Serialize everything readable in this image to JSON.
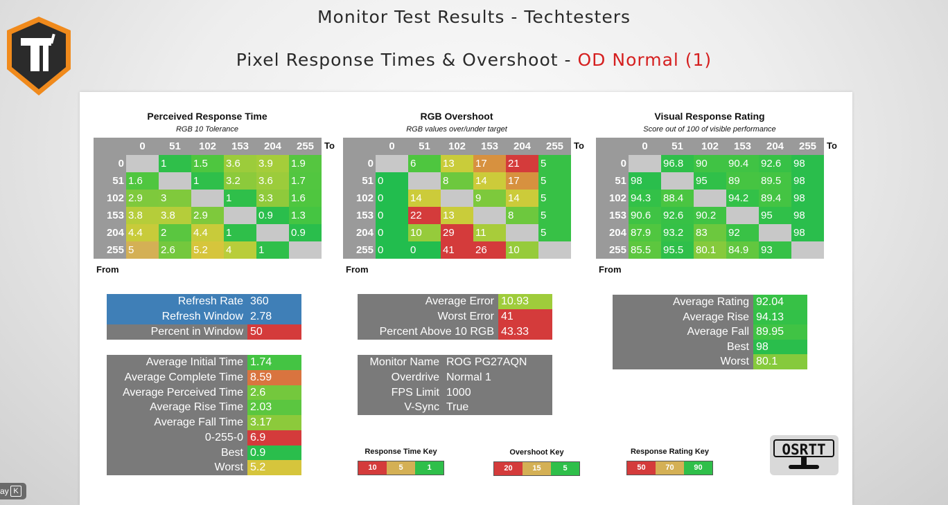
{
  "title": "Monitor Test Results - Techtesters",
  "subtitle_prefix": "Pixel Response Times & Overshoot - ",
  "subtitle_mode": "OD Normal (1)",
  "logo_letter": "T",
  "heatmaps": [
    {
      "title": "Perceived Response Time",
      "subtitle": "RGB 10 Tolerance",
      "to_label": "To",
      "from_label": "From",
      "cols": [
        "0",
        "51",
        "102",
        "153",
        "204",
        "255"
      ],
      "rows": [
        {
          "h": "0",
          "c": [
            [
              "",
              ""
            ],
            [
              "1",
              "#2fbf4a"
            ],
            [
              "1.5",
              "#4ec63f"
            ],
            [
              "3.6",
              "#9ccc3b"
            ],
            [
              "3.9",
              "#a5cd3a"
            ],
            [
              "1.9",
              "#55c640"
            ]
          ]
        },
        {
          "h": "51",
          "c": [
            [
              "1.6",
              "#4fc63f"
            ],
            [
              "",
              ""
            ],
            [
              "1",
              "#2fbf4a"
            ],
            [
              "3.2",
              "#8cca3b"
            ],
            [
              "3.6",
              "#9ccc3b"
            ],
            [
              "1.7",
              "#52c640"
            ]
          ]
        },
        {
          "h": "102",
          "c": [
            [
              "2.9",
              "#7ec93c"
            ],
            [
              "3",
              "#80c93c"
            ],
            [
              "",
              ""
            ],
            [
              "1",
              "#2fbf4a"
            ],
            [
              "3.3",
              "#8fca3b"
            ],
            [
              "1.6",
              "#4fc63f"
            ]
          ]
        },
        {
          "h": "153",
          "c": [
            [
              "3.8",
              "#b5cd3a"
            ],
            [
              "3.8",
              "#b5cd3a"
            ],
            [
              "2.9",
              "#7ec93c"
            ],
            [
              "",
              ""
            ],
            [
              "0.9",
              "#2abe4c"
            ],
            [
              "1.3",
              "#45c542"
            ]
          ]
        },
        {
          "h": "204",
          "c": [
            [
              "4.4",
              "#c8cb3a"
            ],
            [
              "2",
              "#5ac640"
            ],
            [
              "4.4",
              "#c8cb3a"
            ],
            [
              "1",
              "#2fbf4a"
            ],
            [
              "",
              ""
            ],
            [
              "0.9",
              "#2abe4c"
            ]
          ]
        },
        {
          "h": "255",
          "c": [
            [
              "5",
              "#d4b055"
            ],
            [
              "2.6",
              "#74c83d"
            ],
            [
              "5.2",
              "#d6c53c"
            ],
            [
              "4",
              "#b9cd3a"
            ],
            [
              "1",
              "#2fbf4a"
            ],
            [
              "",
              ""
            ]
          ]
        }
      ]
    },
    {
      "title": "RGB Overshoot",
      "subtitle": "RGB values over/under target",
      "to_label": "To",
      "from_label": "From",
      "cols": [
        "0",
        "51",
        "102",
        "153",
        "204",
        "255"
      ],
      "rows": [
        {
          "h": "0",
          "c": [
            [
              "",
              ""
            ],
            [
              "6",
              "#4ec63f"
            ],
            [
              "13",
              "#c9cc3a"
            ],
            [
              "17",
              "#d7913f"
            ],
            [
              "21",
              "#d43b3b"
            ],
            [
              "5",
              "#37c146"
            ]
          ]
        },
        {
          "h": "51",
          "c": [
            [
              "0",
              "#22bd4e"
            ],
            [
              "",
              ""
            ],
            [
              "8",
              "#6dc83e"
            ],
            [
              "14",
              "#cccb3a"
            ],
            [
              "17",
              "#d7913f"
            ],
            [
              "5",
              "#37c146"
            ]
          ]
        },
        {
          "h": "102",
          "c": [
            [
              "0",
              "#22bd4e"
            ],
            [
              "14",
              "#cccb3a"
            ],
            [
              "",
              ""
            ],
            [
              "9",
              "#7dc93c"
            ],
            [
              "14",
              "#cccb3a"
            ],
            [
              "5",
              "#37c146"
            ]
          ]
        },
        {
          "h": "153",
          "c": [
            [
              "0",
              "#22bd4e"
            ],
            [
              "22",
              "#d43b3b"
            ],
            [
              "13",
              "#c9cc3a"
            ],
            [
              "",
              ""
            ],
            [
              "8",
              "#6dc83e"
            ],
            [
              "5",
              "#37c146"
            ]
          ]
        },
        {
          "h": "204",
          "c": [
            [
              "0",
              "#22bd4e"
            ],
            [
              "10",
              "#96cb3b"
            ],
            [
              "29",
              "#d43b3b"
            ],
            [
              "11",
              "#a8cc3a"
            ],
            [
              "",
              ""
            ],
            [
              "5",
              "#37c146"
            ]
          ]
        },
        {
          "h": "255",
          "c": [
            [
              "0",
              "#22bd4e"
            ],
            [
              "0",
              "#22bd4e"
            ],
            [
              "41",
              "#d43b3b"
            ],
            [
              "26",
              "#d43b3b"
            ],
            [
              "10",
              "#96cb3b"
            ],
            [
              "",
              ""
            ]
          ]
        }
      ]
    },
    {
      "title": "Visual Response Rating",
      "subtitle": "Score out of 100 of visible performance",
      "to_label": "To",
      "from_label": "From",
      "cols": [
        "0",
        "51",
        "102",
        "153",
        "204",
        "255"
      ],
      "rows": [
        {
          "h": "0",
          "c": [
            [
              "",
              ""
            ],
            [
              "96.8",
              "#2fbf4a"
            ],
            [
              "90",
              "#40c344"
            ],
            [
              "90.4",
              "#40c344"
            ],
            [
              "92.6",
              "#37c146"
            ],
            [
              "98",
              "#2abe4c"
            ]
          ]
        },
        {
          "h": "51",
          "c": [
            [
              "98",
              "#2abe4c"
            ],
            [
              "",
              ""
            ],
            [
              "95",
              "#30c049"
            ],
            [
              "89",
              "#46c442"
            ],
            [
              "89.5",
              "#44c443"
            ],
            [
              "98",
              "#2abe4c"
            ]
          ]
        },
        {
          "h": "102",
          "c": [
            [
              "94.3",
              "#33c148"
            ],
            [
              "88.4",
              "#4ac541"
            ],
            [
              "",
              ""
            ],
            [
              "94.2",
              "#33c148"
            ],
            [
              "89.4",
              "#44c443"
            ],
            [
              "98",
              "#2abe4c"
            ]
          ]
        },
        {
          "h": "153",
          "c": [
            [
              "90.6",
              "#3fc344"
            ],
            [
              "92.6",
              "#37c146"
            ],
            [
              "90.2",
              "#40c344"
            ],
            [
              "",
              ""
            ],
            [
              "95",
              "#30c049"
            ],
            [
              "98",
              "#2abe4c"
            ]
          ]
        },
        {
          "h": "204",
          "c": [
            [
              "87.9",
              "#50c640"
            ],
            [
              "93.2",
              "#35c147"
            ],
            [
              "83",
              "#6cc83e"
            ],
            [
              "92",
              "#39c246"
            ],
            [
              "",
              ""
            ],
            [
              "98",
              "#2abe4c"
            ]
          ]
        },
        {
          "h": "255",
          "c": [
            [
              "85.5",
              "#5dc73f"
            ],
            [
              "95.5",
              "#2fbf4a"
            ],
            [
              "80.1",
              "#86ca3c"
            ],
            [
              "84.9",
              "#62c73f"
            ],
            [
              "93",
              "#36c147"
            ],
            [
              "",
              ""
            ]
          ]
        }
      ]
    }
  ],
  "refresh_box": [
    {
      "label": "Refresh Rate",
      "value": "360",
      "bg": "#3f7fb7",
      "vbg": "#3f7fb7"
    },
    {
      "label": "Refresh Window",
      "value": "2.78",
      "bg": "#3f7fb7",
      "vbg": "#3f7fb7"
    },
    {
      "label": "Percent in Window",
      "value": "50",
      "bg": "#7a7a7a",
      "vbg": "#d43b3b"
    }
  ],
  "time_box": [
    {
      "label": "Average Initial Time",
      "value": "1.74",
      "vbg": "#44c443"
    },
    {
      "label": "Average Complete Time",
      "value": "8.59",
      "vbg": "#d9743f"
    },
    {
      "label": "Average Perceived Time",
      "value": "2.6",
      "vbg": "#74c83d"
    },
    {
      "label": "Average Rise Time",
      "value": "2.03",
      "vbg": "#5bc640"
    },
    {
      "label": "Average Fall Time",
      "value": "3.17",
      "vbg": "#8cca3b"
    },
    {
      "label": "0-255-0",
      "value": "6.9",
      "vbg": "#d43b3b"
    },
    {
      "label": "Best",
      "value": "0.9",
      "vbg": "#2abe4c"
    },
    {
      "label": "Worst",
      "value": "5.2",
      "vbg": "#d6c53c"
    }
  ],
  "error_box": [
    {
      "label": "Average Error",
      "value": "10.93",
      "vbg": "#9fcc3b"
    },
    {
      "label": "Worst Error",
      "value": "41",
      "vbg": "#d43b3b"
    },
    {
      "label": "Percent Above 10 RGB",
      "value": "43.33",
      "vbg": "#d43b3b"
    }
  ],
  "monitor_box": [
    {
      "label": "Monitor Name",
      "value": "ROG PG27AQN"
    },
    {
      "label": "Overdrive",
      "value": "Normal 1"
    },
    {
      "label": "FPS Limit",
      "value": "1000"
    },
    {
      "label": "V-Sync",
      "value": "True"
    }
  ],
  "rating_box": [
    {
      "label": "Average Rating",
      "value": "92.04",
      "vbg": "#37c146"
    },
    {
      "label": "Average Rise",
      "value": "94.13",
      "vbg": "#33c148"
    },
    {
      "label": "Average Fall",
      "value": "89.95",
      "vbg": "#40c344"
    },
    {
      "label": "Best",
      "value": "98",
      "vbg": "#2abe4c"
    },
    {
      "label": "Worst",
      "value": "80.1",
      "vbg": "#86ca3c"
    }
  ],
  "keys": [
    {
      "title": "Response Time Key",
      "items": [
        [
          "10",
          "#d43b3b"
        ],
        [
          "5",
          "#d4b055"
        ],
        [
          "1",
          "#2fbf4a"
        ]
      ]
    },
    {
      "title": "Overshoot Key",
      "items": [
        [
          "20",
          "#d43b3b"
        ],
        [
          "15",
          "#d4b055"
        ],
        [
          "5",
          "#2fbf4a"
        ]
      ]
    },
    {
      "title": "Response Rating Key",
      "items": [
        [
          "50",
          "#d43b3b"
        ],
        [
          "70",
          "#d4b055"
        ],
        [
          "90",
          "#2fbf4a"
        ]
      ]
    }
  ],
  "osrtt_label": "OSRTT",
  "overlay": {
    "text": "ay",
    "key": "K"
  }
}
